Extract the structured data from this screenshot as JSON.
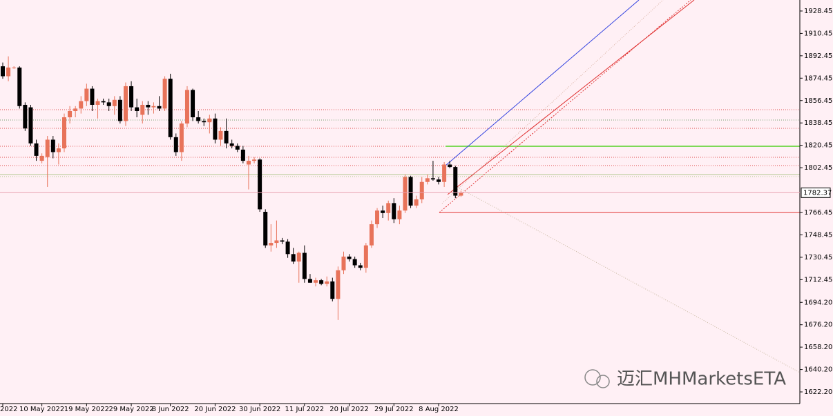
{
  "chart_data": {
    "type": "candlestick",
    "categories": [
      "2022",
      null,
      null,
      null,
      null,
      null,
      null,
      "10 May 2022",
      null,
      null,
      null,
      null,
      null,
      null,
      null,
      "19 May 2022",
      null,
      null,
      null,
      null,
      null,
      null,
      null,
      "29 May 2022",
      null,
      null,
      null,
      null,
      null,
      null,
      "8 Jun 2022",
      null,
      null,
      null,
      null,
      null,
      null,
      null,
      "20 Jun 2022",
      null,
      null,
      null,
      null,
      null,
      null,
      null,
      "30 Jun 2022",
      null,
      null,
      null,
      null,
      null,
      null,
      null,
      "11 Jul 2022",
      null,
      null,
      null,
      null,
      null,
      null,
      null,
      "20 Jul 2022",
      null,
      null,
      null,
      null,
      null,
      null,
      null,
      "29 Jul 2022",
      null,
      null,
      null,
      null,
      null,
      null,
      null,
      "8 Aug 2022",
      null,
      null,
      null,
      null
    ],
    "open": [
      1884,
      1876,
      1883,
      1883,
      1853,
      1851,
      1822,
      1808,
      1811,
      1825,
      1815,
      1818,
      1843,
      1848,
      1850,
      1856,
      1866,
      1853,
      1856,
      1855,
      1852,
      1857,
      1840,
      1868,
      1851,
      1845,
      1853,
      1851,
      1852,
      1850,
      1874,
      1827,
      1815,
      1838,
      1865,
      1843,
      1840,
      1839,
      1842,
      1825,
      1832,
      1822,
      1820,
      1817,
      1805,
      1808,
      1809,
      1767,
      1740,
      1742,
      1744,
      1743,
      1733,
      1727,
      1734,
      1713,
      1710,
      1712,
      1709,
      1711,
      1697,
      1720,
      1731,
      1729,
      1724,
      1722,
      1740,
      1757,
      1768,
      1766,
      1774,
      1761,
      1768,
      1795,
      1772,
      1777,
      1791,
      1794,
      1793,
      1791,
      1805,
      1803,
      1780
    ],
    "high": [
      1887,
      1892,
      1884,
      1884,
      1855,
      1853,
      1825,
      1814,
      1828,
      1828,
      1822,
      1846,
      1852,
      1852,
      1860,
      1870,
      1868,
      1858,
      1858,
      1858,
      1860,
      1860,
      1871,
      1872,
      1858,
      1856,
      1856,
      1855,
      1860,
      1876,
      1878,
      1830,
      1840,
      1868,
      1866,
      1848,
      1842,
      1845,
      1846,
      1835,
      1842,
      1825,
      1822,
      1820,
      1812,
      1811,
      1810,
      1769,
      1757,
      1760,
      1746,
      1745,
      1738,
      1735,
      1740,
      1717,
      1714,
      1713,
      1715,
      1714,
      1723,
      1735,
      1733,
      1731,
      1726,
      1742,
      1760,
      1770,
      1772,
      1776,
      1778,
      1772,
      1797,
      1796,
      1780,
      1795,
      1797,
      1808,
      1795,
      1807,
      1808,
      1804,
      1784
    ],
    "low": [
      1874,
      1872,
      1882,
      1850,
      1832,
      1820,
      1808,
      1806,
      1787,
      1810,
      1805,
      1815,
      1838,
      1843,
      1846,
      1852,
      1848,
      1842,
      1853,
      1848,
      1845,
      1838,
      1836,
      1848,
      1843,
      1838,
      1845,
      1846,
      1848,
      1848,
      1825,
      1812,
      1808,
      1835,
      1840,
      1838,
      1836,
      1830,
      1822,
      1820,
      1818,
      1818,
      1815,
      1806,
      1785,
      1806,
      1767,
      1738,
      1735,
      1738,
      1741,
      1730,
      1725,
      1710,
      1710,
      1710,
      1707,
      1708,
      1707,
      1695,
      1680,
      1717,
      1727,
      1722,
      1720,
      1718,
      1738,
      1754,
      1762,
      1760,
      1758,
      1757,
      1766,
      1770,
      1770,
      1774,
      1789,
      1792,
      1789,
      1787,
      1802,
      1778,
      1779
    ],
    "close": [
      1876,
      1883,
      1883,
      1852,
      1834,
      1822,
      1812,
      1812,
      1825,
      1815,
      1818,
      1843,
      1848,
      1850,
      1856,
      1866,
      1853,
      1856,
      1855,
      1852,
      1857,
      1840,
      1868,
      1851,
      1848,
      1853,
      1851,
      1852,
      1850,
      1874,
      1827,
      1815,
      1838,
      1865,
      1843,
      1840,
      1839,
      1842,
      1825,
      1832,
      1822,
      1820,
      1817,
      1808,
      1808,
      1809,
      1769,
      1740,
      1742,
      1744,
      1743,
      1733,
      1727,
      1734,
      1713,
      1710,
      1712,
      1709,
      1711,
      1697,
      1720,
      1731,
      1729,
      1724,
      1722,
      1740,
      1757,
      1768,
      1766,
      1774,
      1761,
      1768,
      1795,
      1772,
      1777,
      1791,
      1794,
      1793,
      1791,
      1805,
      1803,
      1780,
      1782.37
    ],
    "up_color": "#e8735a",
    "down_color": "#000000",
    "current_price": 1782.37,
    "ylim": [
      1612.8,
      1937.3
    ],
    "yticks": [
      1928.45,
      1910.45,
      1892.45,
      1874.45,
      1856.45,
      1838.45,
      1820.45,
      1802.45,
      1766.45,
      1748.45,
      1730.45,
      1712.45,
      {
        "value": 1694.2,
        "label": "1694.20"
      },
      {
        "value": 1676.2,
        "label": "1676.20"
      },
      {
        "value": 1658.2,
        "label": "1658.20"
      },
      {
        "value": 1640.2,
        "label": "1640.20"
      },
      {
        "value": 1622.2,
        "label": "1622.20"
      }
    ],
    "watermark": "迈汇MHMarketsETA"
  }
}
